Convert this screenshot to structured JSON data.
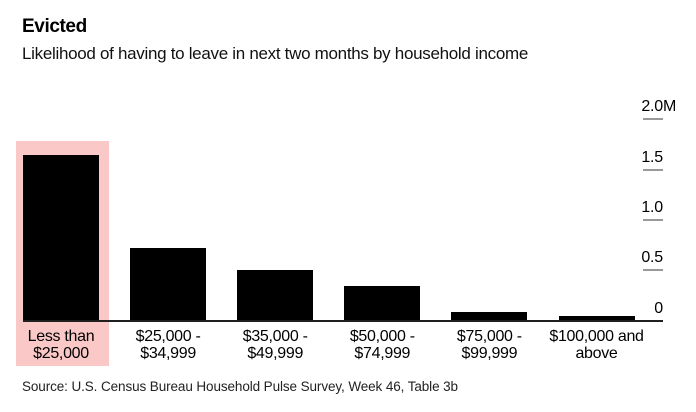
{
  "chart_data": {
    "type": "bar",
    "title": "Evicted",
    "subtitle": "Likelihood of having to leave in next two months by household income",
    "source": "Source: U.S. Census Bureau Household Pulse Survey, Week 46, Table 3b",
    "xlabel": "",
    "ylabel": "",
    "unit": "M",
    "ylim": [
      0,
      2.0
    ],
    "legend": "none",
    "grid": "right-side tick dashes only",
    "categories": [
      "Less than $25,000",
      "$25,000 - $34,999",
      "$35,000 - $49,999",
      "$50,000 - $74,999",
      "$75,000 - $99,999",
      "$100,000 and above"
    ],
    "category_lines": [
      [
        "Less than",
        "$25,000"
      ],
      [
        "$25,000 -",
        "$34,999"
      ],
      [
        "$35,000 -",
        "$49,999"
      ],
      [
        "$50,000 -",
        "$74,999"
      ],
      [
        "$75,000 -",
        "$99,999"
      ],
      [
        "$100,000 and",
        "above"
      ]
    ],
    "values": [
      1.65,
      0.73,
      0.51,
      0.35,
      0.09,
      0.05
    ],
    "yticks": [
      {
        "value": 2.0,
        "label": "2.0",
        "suffix": "M"
      },
      {
        "value": 1.5,
        "label": "1.5",
        "suffix": ""
      },
      {
        "value": 1.0,
        "label": "1.0",
        "suffix": ""
      },
      {
        "value": 0.5,
        "label": "0.5",
        "suffix": ""
      },
      {
        "value": 0,
        "label": "0",
        "suffix": ""
      }
    ],
    "highlighted_index": 0,
    "colors": {
      "bar": "#000000",
      "highlight": "#fac9c7",
      "axis": "#1f1f1f",
      "tick": "#999999"
    }
  }
}
